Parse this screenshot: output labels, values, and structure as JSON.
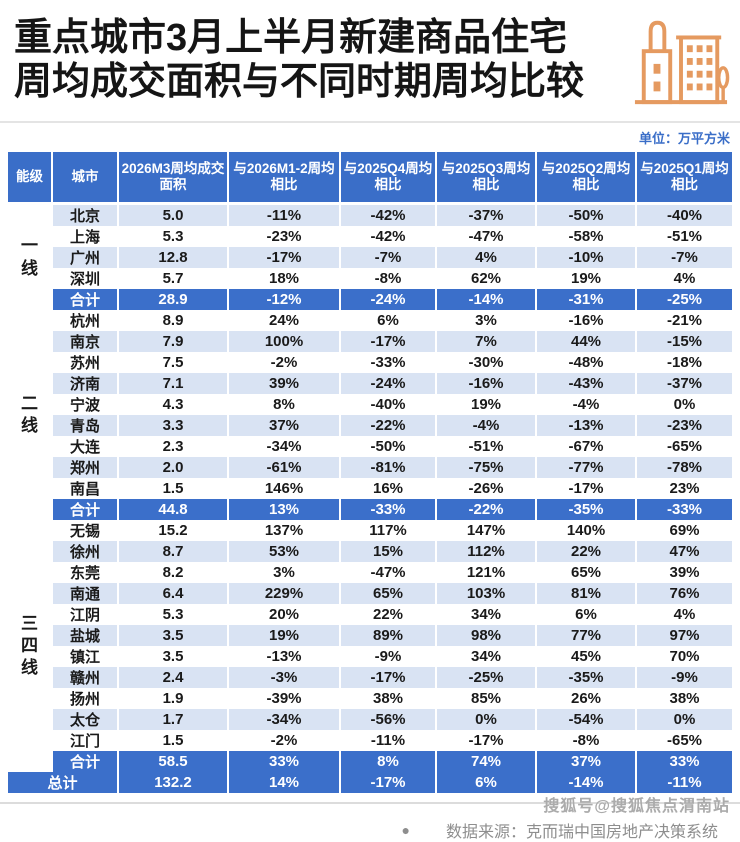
{
  "title": {
    "line1": "重点城市3月上半月新建商品住宅",
    "line2": "周均成交面积与不同时期周均比较"
  },
  "unit_label": "单位：万平方米",
  "colors": {
    "header_blue": "#3a6ec8",
    "total_row_blue": "#3b6fca",
    "light_row_blue": "#d9e3f3",
    "unit_text_blue": "#3a6ec8",
    "icon_orange": "#e59a60",
    "footer_gray": "#8e8e8e",
    "watermark_gray": "#ababab"
  },
  "chart_data": {
    "type": "table",
    "title": "重点城市3月上半月新建商品住宅周均成交面积与不同时期周均比较",
    "unit": "万平方米",
    "columns": [
      "能级",
      "城市",
      "2026M3周均成交面积",
      "与2026M1-2周均相比",
      "与2025Q4周均相比",
      "与2025Q3周均相比",
      "与2025Q2周均相比",
      "与2025Q1周均相比"
    ],
    "groups": [
      {
        "tier": "一线",
        "rows": [
          {
            "city": "北京",
            "values": [
              "5.0",
              "-11%",
              "-42%",
              "-37%",
              "-50%",
              "-40%"
            ]
          },
          {
            "city": "上海",
            "values": [
              "5.3",
              "-23%",
              "-42%",
              "-47%",
              "-58%",
              "-51%"
            ]
          },
          {
            "city": "广州",
            "values": [
              "12.8",
              "-17%",
              "-7%",
              "4%",
              "-10%",
              "-7%"
            ]
          },
          {
            "city": "深圳",
            "values": [
              "5.7",
              "18%",
              "-8%",
              "62%",
              "19%",
              "4%"
            ]
          }
        ],
        "subtotal": {
          "label": "合计",
          "values": [
            "28.9",
            "-12%",
            "-24%",
            "-14%",
            "-31%",
            "-25%"
          ]
        }
      },
      {
        "tier": "二线",
        "rows": [
          {
            "city": "杭州",
            "values": [
              "8.9",
              "24%",
              "6%",
              "3%",
              "-16%",
              "-21%"
            ]
          },
          {
            "city": "南京",
            "values": [
              "7.9",
              "100%",
              "-17%",
              "7%",
              "44%",
              "-15%"
            ]
          },
          {
            "city": "苏州",
            "values": [
              "7.5",
              "-2%",
              "-33%",
              "-30%",
              "-48%",
              "-18%"
            ]
          },
          {
            "city": "济南",
            "values": [
              "7.1",
              "39%",
              "-24%",
              "-16%",
              "-43%",
              "-37%"
            ]
          },
          {
            "city": "宁波",
            "values": [
              "4.3",
              "8%",
              "-40%",
              "19%",
              "-4%",
              "0%"
            ]
          },
          {
            "city": "青岛",
            "values": [
              "3.3",
              "37%",
              "-22%",
              "-4%",
              "-13%",
              "-23%"
            ]
          },
          {
            "city": "大连",
            "values": [
              "2.3",
              "-34%",
              "-50%",
              "-51%",
              "-67%",
              "-65%"
            ]
          },
          {
            "city": "郑州",
            "values": [
              "2.0",
              "-61%",
              "-81%",
              "-75%",
              "-77%",
              "-78%"
            ]
          },
          {
            "city": "南昌",
            "values": [
              "1.5",
              "146%",
              "16%",
              "-26%",
              "-17%",
              "23%"
            ]
          }
        ],
        "subtotal": {
          "label": "合计",
          "values": [
            "44.8",
            "13%",
            "-33%",
            "-22%",
            "-35%",
            "-33%"
          ]
        }
      },
      {
        "tier": "三四线",
        "rows": [
          {
            "city": "无锡",
            "values": [
              "15.2",
              "137%",
              "117%",
              "147%",
              "140%",
              "69%"
            ]
          },
          {
            "city": "徐州",
            "values": [
              "8.7",
              "53%",
              "15%",
              "112%",
              "22%",
              "47%"
            ]
          },
          {
            "city": "东莞",
            "values": [
              "8.2",
              "3%",
              "-47%",
              "121%",
              "65%",
              "39%"
            ]
          },
          {
            "city": "南通",
            "values": [
              "6.4",
              "229%",
              "65%",
              "103%",
              "81%",
              "76%"
            ]
          },
          {
            "city": "江阴",
            "values": [
              "5.3",
              "20%",
              "22%",
              "34%",
              "6%",
              "4%"
            ]
          },
          {
            "city": "盐城",
            "values": [
              "3.5",
              "19%",
              "89%",
              "98%",
              "77%",
              "97%"
            ]
          },
          {
            "city": "镇江",
            "values": [
              "3.5",
              "-13%",
              "-9%",
              "34%",
              "45%",
              "70%"
            ]
          },
          {
            "city": "赣州",
            "values": [
              "2.4",
              "-3%",
              "-17%",
              "-25%",
              "-35%",
              "-9%"
            ]
          },
          {
            "city": "扬州",
            "values": [
              "1.9",
              "-39%",
              "38%",
              "85%",
              "26%",
              "38%"
            ]
          },
          {
            "city": "太仓",
            "values": [
              "1.7",
              "-34%",
              "-56%",
              "0%",
              "-54%",
              "0%"
            ]
          },
          {
            "city": "江门",
            "values": [
              "1.5",
              "-2%",
              "-11%",
              "-17%",
              "-8%",
              "-65%"
            ]
          }
        ],
        "subtotal": {
          "label": "合计",
          "values": [
            "58.5",
            "33%",
            "8%",
            "74%",
            "37%",
            "33%"
          ]
        }
      }
    ],
    "grand_total": {
      "label": "总计",
      "values": [
        "132.2",
        "14%",
        "-17%",
        "6%",
        "-14%",
        "-11%"
      ]
    }
  },
  "footer": {
    "bullet": "●",
    "source": "数据来源：克而瑞中国房地产决策系统"
  },
  "watermark": "搜狐号@搜狐焦点渭南站"
}
